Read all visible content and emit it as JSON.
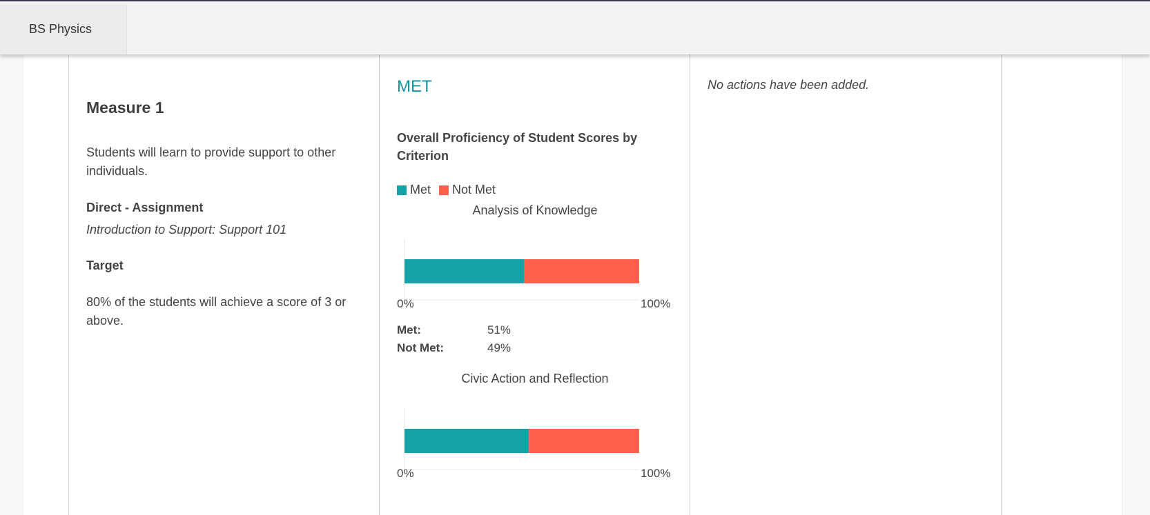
{
  "header": {
    "program_tab": "BS Physics"
  },
  "measure": {
    "title": "Measure 1",
    "description": "Students will learn to provide support to other individuals.",
    "method": "Direct - Assignment",
    "method_detail": "Introduction to Support: Support 101",
    "target_label": "Target",
    "target_text": "80% of the students will achieve a score of 3 or above."
  },
  "results": {
    "status": "MET",
    "status_color": "#14979e",
    "chart_title": "Overall Proficiency of Student Scores by Criterion",
    "legend": [
      {
        "label": "Met",
        "color": "#17a2a8"
      },
      {
        "label": "Not Met",
        "color": "#ff604e"
      }
    ],
    "met_label": "Met:",
    "not_met_label": "Not Met:"
  },
  "chart_data": [
    {
      "type": "bar",
      "title": "Analysis of Knowledge",
      "orientation": "horizontal-stacked",
      "series": [
        {
          "name": "Met",
          "values": [
            51
          ]
        },
        {
          "name": "Not Met",
          "values": [
            49
          ]
        }
      ],
      "xlim": [
        0,
        100
      ],
      "xticks": [
        "0%",
        "100%"
      ],
      "met_pct": "51%",
      "not_met_pct": "49%"
    },
    {
      "type": "bar",
      "title": "Civic Action and Reflection",
      "orientation": "horizontal-stacked",
      "series": [
        {
          "name": "Met",
          "values": [
            53
          ]
        },
        {
          "name": "Not Met",
          "values": [
            47
          ]
        }
      ],
      "xlim": [
        0,
        100
      ],
      "xticks": [
        "0%",
        "100%"
      ]
    }
  ],
  "actions": {
    "empty_text": "No actions have been added."
  }
}
